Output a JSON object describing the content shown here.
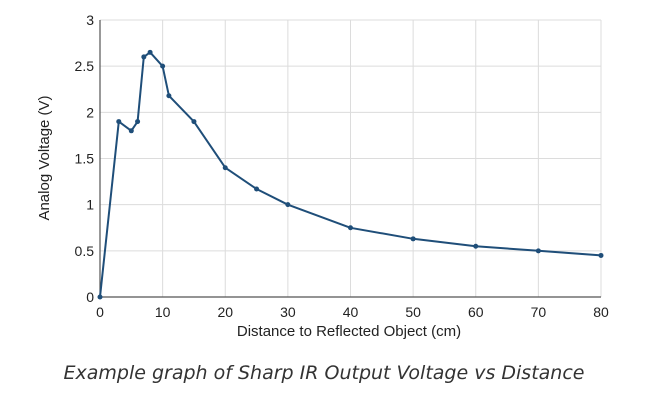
{
  "chart_data": {
    "type": "line",
    "title": "",
    "xlabel": "Distance to Reflected Object (cm)",
    "ylabel": "Analog Voltage (V)",
    "xlim": [
      0,
      80
    ],
    "ylim": [
      0,
      3
    ],
    "x_ticks": [
      0,
      10,
      20,
      30,
      40,
      50,
      60,
      70,
      80
    ],
    "y_ticks": [
      0,
      0.5,
      1,
      1.5,
      2,
      2.5,
      3
    ],
    "grid": true,
    "series": [
      {
        "color": "#1f4e79",
        "points": [
          {
            "x": 0,
            "y": 0
          },
          {
            "x": 3,
            "y": 1.9
          },
          {
            "x": 5,
            "y": 1.8
          },
          {
            "x": 6,
            "y": 1.9
          },
          {
            "x": 7,
            "y": 2.6
          },
          {
            "x": 8,
            "y": 2.65
          },
          {
            "x": 10,
            "y": 2.5
          },
          {
            "x": 11,
            "y": 2.18
          },
          {
            "x": 15,
            "y": 1.9
          },
          {
            "x": 20,
            "y": 1.4
          },
          {
            "x": 25,
            "y": 1.17
          },
          {
            "x": 30,
            "y": 1.0
          },
          {
            "x": 40,
            "y": 0.75
          },
          {
            "x": 50,
            "y": 0.63
          },
          {
            "x": 60,
            "y": 0.55
          },
          {
            "x": 70,
            "y": 0.5
          },
          {
            "x": 80,
            "y": 0.45
          }
        ]
      }
    ]
  },
  "caption": "Example graph of Sharp IR Output Voltage vs Distance"
}
